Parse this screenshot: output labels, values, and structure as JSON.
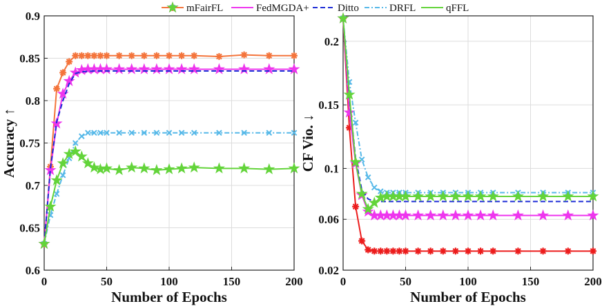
{
  "legend": [
    {
      "name": "mFairFL",
      "color": "#f4743b"
    },
    {
      "name": "FedMGDA+",
      "color": "#ee35ee"
    },
    {
      "name": "Ditto",
      "color": "#1c2bd6"
    },
    {
      "name": "DRFL",
      "color": "#55b8e8"
    },
    {
      "name": "qFFL",
      "color": "#63d43a"
    }
  ],
  "chart_data": [
    {
      "type": "line",
      "xlabel": "Number of Epochs",
      "ylabel": "Accuracy ↑",
      "xlim": [
        0,
        200
      ],
      "ylim": [
        0.6,
        0.9
      ],
      "xticks": [
        0,
        50,
        100,
        150,
        200
      ],
      "xtick_labels": [
        "0",
        "50",
        "100",
        "150",
        "200"
      ],
      "yticks": [
        0.6,
        0.65,
        0.7,
        0.75,
        0.8,
        0.85,
        0.9
      ],
      "ytick_labels": [
        "0.6",
        "0.65",
        "0.7",
        "0.75",
        "0.8",
        "0.85",
        "0.9"
      ],
      "grid": true,
      "series": [
        {
          "name": "mFairFL",
          "color": "#f4743b",
          "marker": "asterisk",
          "dash": "solid",
          "x": [
            0,
            5,
            10,
            15,
            20,
            25,
            30,
            35,
            40,
            45,
            50,
            60,
            70,
            80,
            90,
            100,
            110,
            120,
            140,
            160,
            180,
            200
          ],
          "y": [
            0.631,
            0.722,
            0.814,
            0.833,
            0.846,
            0.853,
            0.853,
            0.853,
            0.853,
            0.853,
            0.853,
            0.853,
            0.853,
            0.853,
            0.853,
            0.853,
            0.853,
            0.853,
            0.852,
            0.854,
            0.853,
            0.853
          ]
        },
        {
          "name": "FedMGDA+",
          "color": "#ee35ee",
          "marker": "star",
          "dash": "solid",
          "x": [
            0,
            5,
            10,
            15,
            20,
            25,
            30,
            35,
            40,
            45,
            50,
            60,
            70,
            80,
            90,
            100,
            110,
            120,
            140,
            160,
            180,
            200
          ],
          "y": [
            0.631,
            0.718,
            0.773,
            0.808,
            0.823,
            0.833,
            0.836,
            0.837,
            0.837,
            0.837,
            0.837,
            0.837,
            0.837,
            0.837,
            0.837,
            0.837,
            0.837,
            0.837,
            0.837,
            0.837,
            0.837,
            0.837
          ]
        },
        {
          "name": "Ditto",
          "color": "#1c2bd6",
          "marker": "none",
          "dash": "dash",
          "x": [
            0,
            5,
            10,
            15,
            20,
            25,
            30,
            40,
            50,
            60,
            80,
            100,
            120,
            140,
            160,
            180,
            200
          ],
          "y": [
            0.631,
            0.72,
            0.775,
            0.8,
            0.82,
            0.832,
            0.834,
            0.835,
            0.835,
            0.835,
            0.835,
            0.835,
            0.835,
            0.835,
            0.835,
            0.835,
            0.835
          ]
        },
        {
          "name": "DRFL",
          "color": "#55b8e8",
          "marker": "x",
          "dash": "dashdot",
          "x": [
            0,
            5,
            10,
            15,
            20,
            25,
            30,
            35,
            40,
            45,
            50,
            60,
            70,
            80,
            90,
            100,
            110,
            120,
            140,
            160,
            180,
            200
          ],
          "y": [
            0.631,
            0.665,
            0.69,
            0.712,
            0.732,
            0.75,
            0.758,
            0.762,
            0.762,
            0.762,
            0.762,
            0.762,
            0.762,
            0.762,
            0.762,
            0.762,
            0.762,
            0.762,
            0.762,
            0.762,
            0.762,
            0.762
          ]
        },
        {
          "name": "qFFL",
          "color": "#63d43a",
          "marker": "star",
          "dash": "solid",
          "x": [
            0,
            5,
            10,
            15,
            20,
            25,
            30,
            35,
            40,
            45,
            50,
            60,
            70,
            80,
            90,
            100,
            110,
            120,
            140,
            160,
            180,
            200
          ],
          "y": [
            0.631,
            0.675,
            0.706,
            0.726,
            0.737,
            0.74,
            0.734,
            0.726,
            0.721,
            0.719,
            0.72,
            0.718,
            0.721,
            0.72,
            0.718,
            0.719,
            0.72,
            0.721,
            0.72,
            0.72,
            0.719,
            0.72
          ]
        }
      ]
    },
    {
      "type": "line",
      "xlabel": "Number of Epochs",
      "ylabel": "CF Vio. ↓",
      "xlim": [
        0,
        200
      ],
      "ylim": [
        0.02,
        0.22
      ],
      "xticks": [
        0,
        50,
        100,
        150,
        200
      ],
      "xtick_labels": [
        "0",
        "50",
        "100",
        "150",
        "200"
      ],
      "yticks": [
        0.02,
        0.06,
        0.1,
        0.15,
        0.2
      ],
      "ytick_labels": [
        "0.02",
        "0.06",
        "0.1",
        "0.15",
        "0.2"
      ],
      "grid": true,
      "series": [
        {
          "name": "mFairFL",
          "color": "#ec1c1c",
          "marker": "asterisk",
          "dash": "solid",
          "x": [
            0,
            5,
            10,
            15,
            20,
            25,
            30,
            35,
            40,
            45,
            50,
            60,
            70,
            80,
            90,
            100,
            110,
            120,
            140,
            160,
            180,
            200
          ],
          "y": [
            0.218,
            0.132,
            0.07,
            0.043,
            0.036,
            0.035,
            0.035,
            0.035,
            0.035,
            0.035,
            0.035,
            0.035,
            0.035,
            0.035,
            0.035,
            0.035,
            0.035,
            0.035,
            0.035,
            0.035,
            0.035,
            0.035
          ]
        },
        {
          "name": "FedMGDA+",
          "color": "#ee35ee",
          "marker": "star",
          "dash": "solid",
          "x": [
            0,
            5,
            10,
            15,
            20,
            25,
            30,
            35,
            40,
            45,
            50,
            60,
            70,
            80,
            90,
            100,
            110,
            120,
            140,
            160,
            180,
            200
          ],
          "y": [
            0.218,
            0.144,
            0.104,
            0.079,
            0.066,
            0.063,
            0.063,
            0.063,
            0.063,
            0.063,
            0.063,
            0.063,
            0.063,
            0.063,
            0.063,
            0.063,
            0.063,
            0.063,
            0.063,
            0.063,
            0.063,
            0.063
          ]
        },
        {
          "name": "Ditto",
          "color": "#1c2bd6",
          "marker": "none",
          "dash": "dash",
          "x": [
            0,
            5,
            10,
            15,
            20,
            25,
            30,
            40,
            50,
            60,
            80,
            100,
            120,
            140,
            160,
            180,
            200
          ],
          "y": [
            0.218,
            0.155,
            0.108,
            0.083,
            0.076,
            0.074,
            0.074,
            0.074,
            0.074,
            0.074,
            0.074,
            0.074,
            0.074,
            0.074,
            0.074,
            0.074,
            0.074
          ]
        },
        {
          "name": "DRFL",
          "color": "#55b8e8",
          "marker": "x",
          "dash": "dashdot",
          "x": [
            0,
            5,
            10,
            15,
            20,
            25,
            30,
            35,
            40,
            45,
            50,
            60,
            70,
            80,
            90,
            100,
            110,
            120,
            140,
            160,
            180,
            200
          ],
          "y": [
            0.218,
            0.168,
            0.136,
            0.107,
            0.093,
            0.085,
            0.082,
            0.081,
            0.081,
            0.081,
            0.081,
            0.081,
            0.081,
            0.081,
            0.081,
            0.081,
            0.081,
            0.081,
            0.081,
            0.081,
            0.081,
            0.081
          ]
        },
        {
          "name": "qFFL",
          "color": "#63d43a",
          "marker": "star",
          "dash": "solid",
          "x": [
            0,
            5,
            10,
            15,
            20,
            25,
            30,
            35,
            40,
            45,
            50,
            60,
            70,
            80,
            90,
            100,
            110,
            120,
            140,
            160,
            180,
            200
          ],
          "y": [
            0.218,
            0.158,
            0.105,
            0.08,
            0.068,
            0.073,
            0.077,
            0.078,
            0.078,
            0.078,
            0.078,
            0.078,
            0.078,
            0.078,
            0.078,
            0.078,
            0.078,
            0.078,
            0.078,
            0.078,
            0.078,
            0.078
          ]
        }
      ]
    }
  ]
}
